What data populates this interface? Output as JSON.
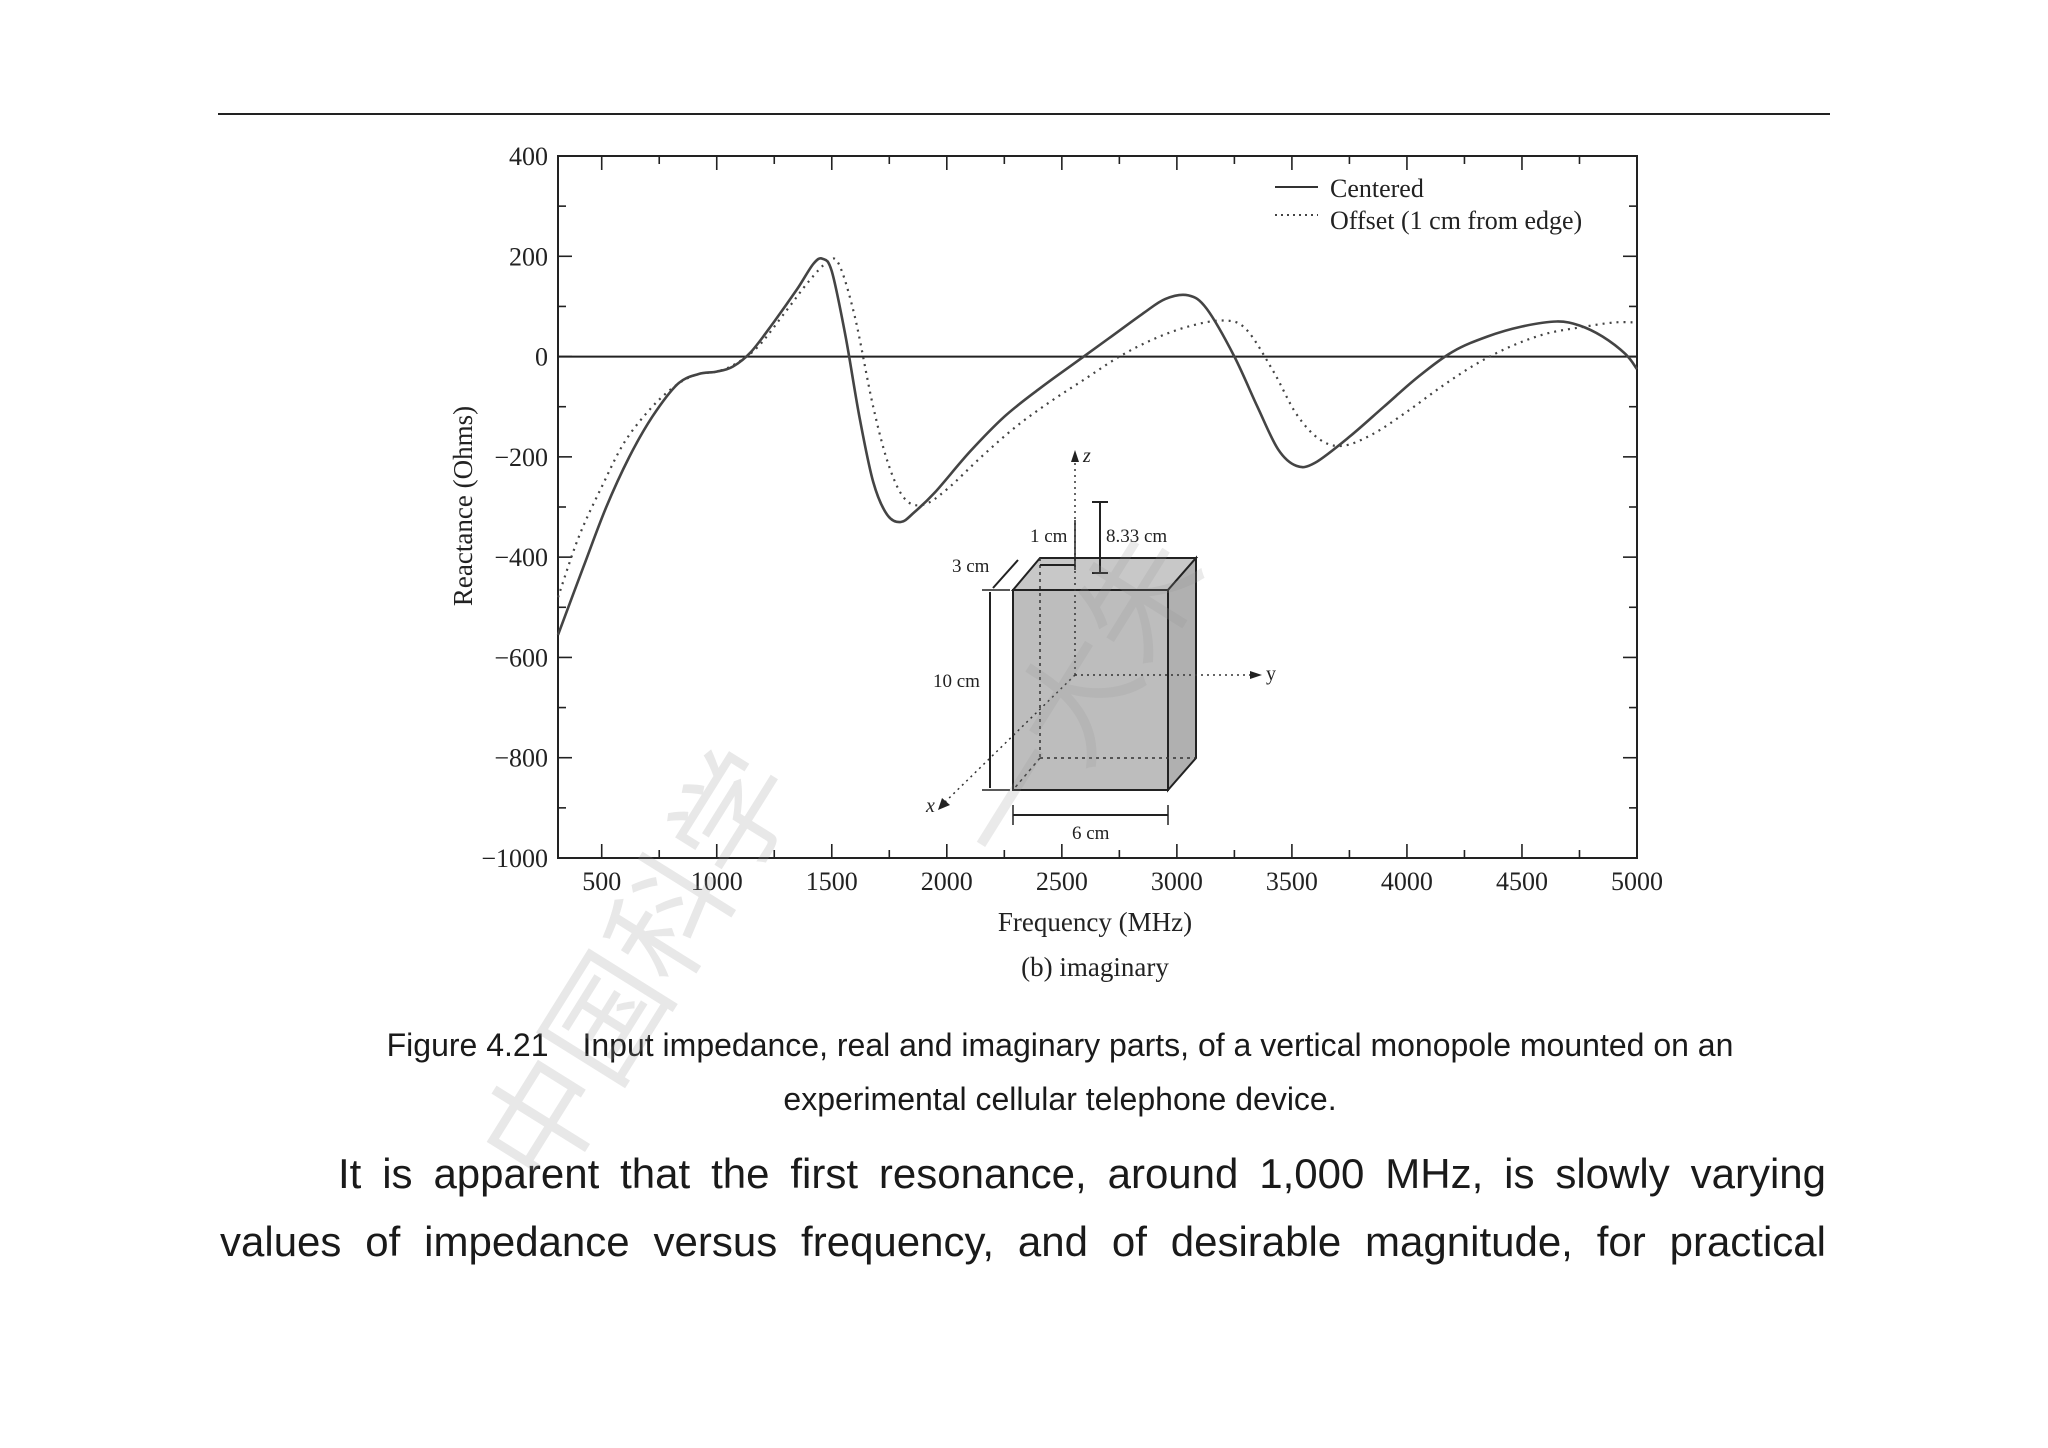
{
  "chart_data": {
    "type": "line",
    "xlabel": "Frequency (MHz)",
    "ylabel": "Reactance (Ohms)",
    "subtitle": "(b) imaginary",
    "xlim": [
      310,
      5000
    ],
    "ylim": [
      -1000,
      400
    ],
    "x_ticks": [
      500,
      1000,
      1500,
      2000,
      2500,
      3000,
      3500,
      4000,
      4500,
      5000
    ],
    "y_ticks": [
      400,
      200,
      0,
      -200,
      -400,
      -600,
      -800,
      -1000
    ],
    "y_tick_labels": [
      "400",
      "200",
      "0",
      "−200",
      "−400",
      "−600",
      "−800",
      "−1000"
    ],
    "legend_position": "top-right",
    "series": [
      {
        "name": "Centered",
        "style": "solid",
        "points": [
          [
            310,
            -555
          ],
          [
            420,
            -420
          ],
          [
            520,
            -300
          ],
          [
            620,
            -200
          ],
          [
            720,
            -120
          ],
          [
            830,
            -55
          ],
          [
            920,
            -35
          ],
          [
            1000,
            -30
          ],
          [
            1070,
            -20
          ],
          [
            1150,
            10
          ],
          [
            1250,
            70
          ],
          [
            1350,
            135
          ],
          [
            1420,
            185
          ],
          [
            1460,
            195
          ],
          [
            1500,
            170
          ],
          [
            1560,
            40
          ],
          [
            1620,
            -120
          ],
          [
            1680,
            -250
          ],
          [
            1740,
            -315
          ],
          [
            1800,
            -330
          ],
          [
            1860,
            -310
          ],
          [
            1950,
            -270
          ],
          [
            2100,
            -190
          ],
          [
            2250,
            -120
          ],
          [
            2400,
            -65
          ],
          [
            2550,
            -15
          ],
          [
            2700,
            35
          ],
          [
            2850,
            85
          ],
          [
            2950,
            115
          ],
          [
            3050,
            122
          ],
          [
            3130,
            95
          ],
          [
            3250,
            0
          ],
          [
            3350,
            -100
          ],
          [
            3440,
            -185
          ],
          [
            3520,
            -218
          ],
          [
            3600,
            -212
          ],
          [
            3750,
            -160
          ],
          [
            3900,
            -100
          ],
          [
            4050,
            -40
          ],
          [
            4200,
            10
          ],
          [
            4350,
            40
          ],
          [
            4500,
            60
          ],
          [
            4650,
            70
          ],
          [
            4750,
            62
          ],
          [
            4850,
            40
          ],
          [
            4950,
            5
          ],
          [
            5000,
            -25
          ]
        ]
      },
      {
        "name": "Offset (1 cm from edge)",
        "style": "dotted",
        "points": [
          [
            310,
            -480
          ],
          [
            400,
            -360
          ],
          [
            500,
            -260
          ],
          [
            600,
            -170
          ],
          [
            720,
            -100
          ],
          [
            830,
            -55
          ],
          [
            920,
            -35
          ],
          [
            1000,
            -30
          ],
          [
            1080,
            -15
          ],
          [
            1180,
            20
          ],
          [
            1300,
            90
          ],
          [
            1400,
            150
          ],
          [
            1480,
            188
          ],
          [
            1530,
            185
          ],
          [
            1600,
            80
          ],
          [
            1680,
            -100
          ],
          [
            1750,
            -220
          ],
          [
            1820,
            -285
          ],
          [
            1900,
            -295
          ],
          [
            2000,
            -265
          ],
          [
            2150,
            -200
          ],
          [
            2300,
            -140
          ],
          [
            2450,
            -90
          ],
          [
            2600,
            -45
          ],
          [
            2750,
            0
          ],
          [
            2900,
            35
          ],
          [
            3050,
            60
          ],
          [
            3200,
            72
          ],
          [
            3300,
            55
          ],
          [
            3420,
            -30
          ],
          [
            3520,
            -115
          ],
          [
            3620,
            -165
          ],
          [
            3720,
            -178
          ],
          [
            3850,
            -155
          ],
          [
            4000,
            -110
          ],
          [
            4150,
            -60
          ],
          [
            4300,
            -15
          ],
          [
            4450,
            20
          ],
          [
            4600,
            45
          ],
          [
            4750,
            58
          ],
          [
            4900,
            68
          ],
          [
            5000,
            68
          ]
        ]
      }
    ],
    "inset": {
      "z": "z",
      "y": "y",
      "x": "x",
      "dim_1cm": "1 cm",
      "dim_833cm": "8.33 cm",
      "dim_3cm": "3 cm",
      "dim_10cm": "10 cm",
      "dim_6cm": "6 cm"
    }
  },
  "caption": {
    "label": "Figure 4.21",
    "line1": "Input impedance, real and imaginary parts, of a vertical monopole mounted on an",
    "line2": "experimental cellular telephone device."
  },
  "body": {
    "line1": "It is apparent that the first resonance, around 1,000 MHz, is slowly varying",
    "line2": "values of impedance versus frequency, and of desirable magnitude, for practical"
  },
  "watermark": {
    "text1": "中国科学",
    "text2": "一大朱"
  },
  "colors": {
    "curve": "#444444",
    "box_fill": "#bdbdbd",
    "axis": "#222222"
  }
}
